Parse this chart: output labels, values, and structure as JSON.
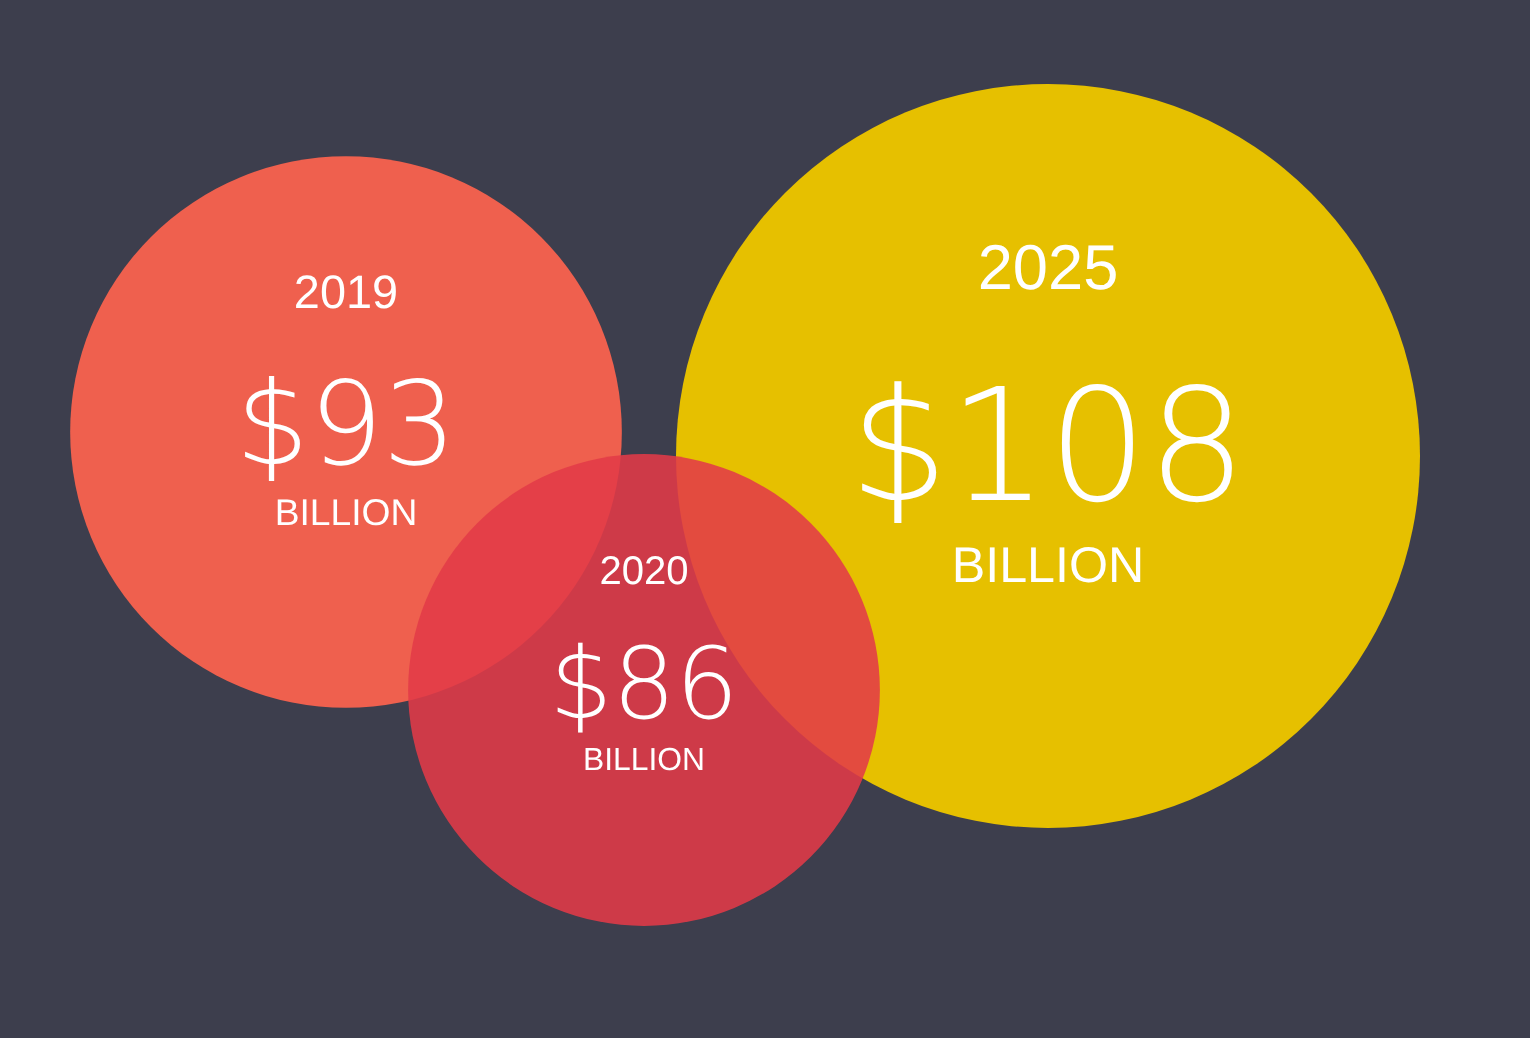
{
  "chart_data": {
    "type": "other",
    "categories": [
      "2019",
      "2020",
      "2025"
    ],
    "values": [
      93,
      86,
      108
    ],
    "value_labels": [
      "$93\nBILLION",
      "$86\nBILLION",
      "$108\nBILLION"
    ],
    "colors": [
      "#ef604e",
      "#e23a48",
      "#e6c000"
    ]
  }
}
